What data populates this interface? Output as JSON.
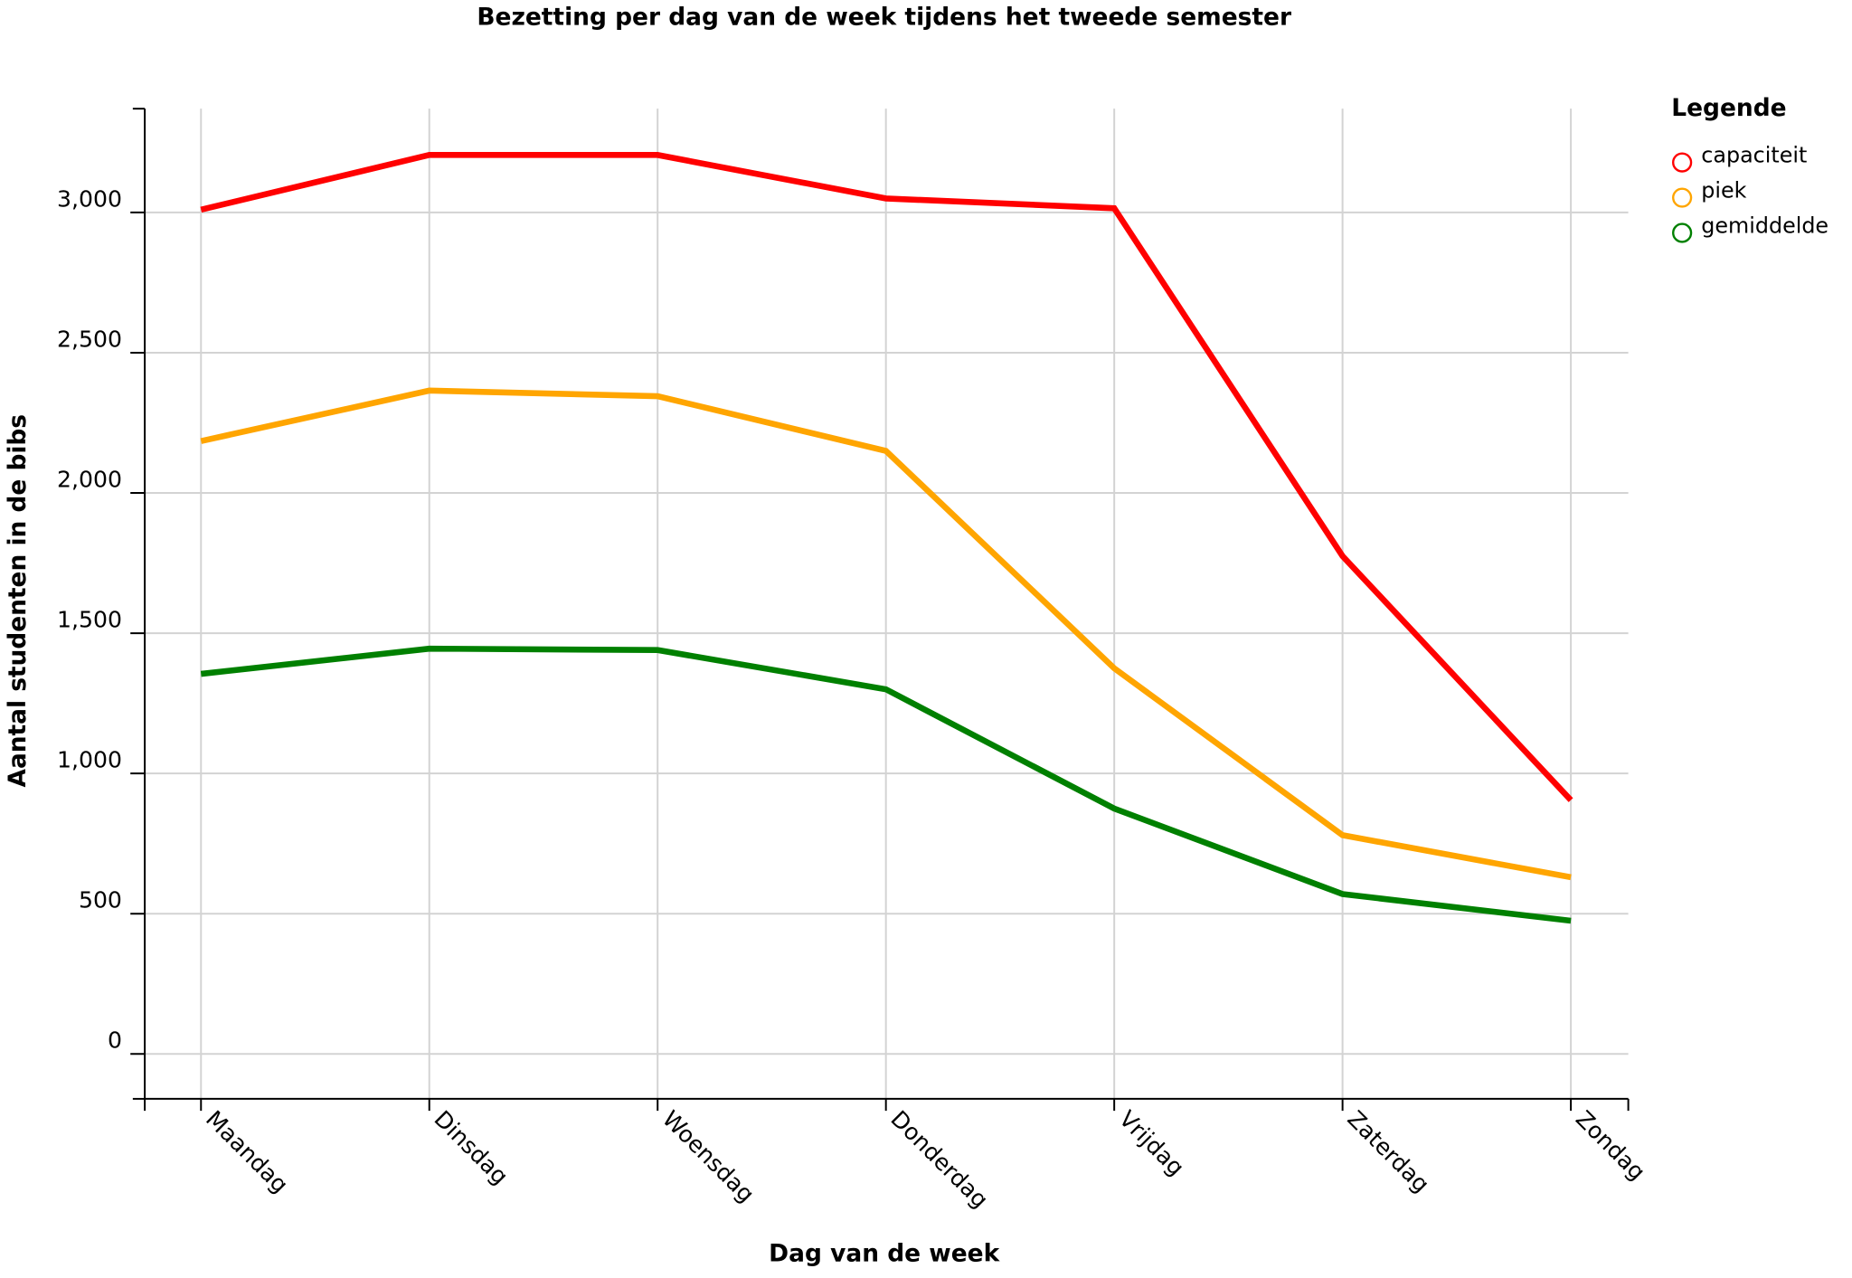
{
  "chart_data": {
    "type": "line",
    "title": "Bezetting per dag van de week tijdens het tweede semester",
    "xlabel": "Dag van de week",
    "ylabel": "Aantal studenten in de bibs",
    "categories": [
      "Maandag",
      "Dinsdag",
      "Woensdag",
      "Donderdag",
      "Vrijdag",
      "Zaterdag",
      "Zondag"
    ],
    "ylim": [
      -160,
      3370
    ],
    "yticks": [
      0,
      500,
      1000,
      1500,
      2000,
      2500,
      3000
    ],
    "ytick_labels": [
      "0",
      "500",
      "1,000",
      "1,500",
      "2,000",
      "2,500",
      "3,000"
    ],
    "grid": true,
    "legend": {
      "title": "Legende",
      "placement": "right"
    },
    "series": [
      {
        "name": "capaciteit",
        "color": "#ff0000",
        "values": [
          3010,
          3205,
          3205,
          3050,
          3015,
          1775,
          905
        ]
      },
      {
        "name": "piek",
        "color": "#ffa500",
        "values": [
          2185,
          2365,
          2345,
          2150,
          1375,
          780,
          630
        ]
      },
      {
        "name": "gemiddelde",
        "color": "#008000",
        "values": [
          1355,
          1445,
          1440,
          1300,
          875,
          570,
          475
        ]
      }
    ]
  }
}
